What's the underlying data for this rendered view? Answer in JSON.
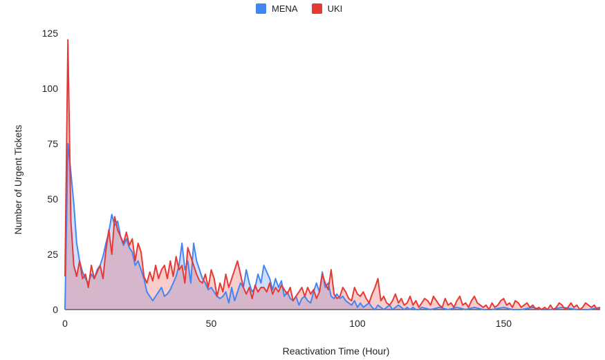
{
  "chart_data": {
    "type": "area",
    "xlabel": "Reactivation Time (Hour)",
    "ylabel": "Number of Urgent Tickets",
    "xlim": [
      0,
      183
    ],
    "ylim": [
      0,
      125
    ],
    "xticks": [
      0,
      50,
      100,
      150
    ],
    "yticks": [
      0,
      25,
      50,
      75,
      100,
      125
    ],
    "legend_position": "top-center",
    "grid": false,
    "series": [
      {
        "name": "MENA",
        "color": "#4285f4",
        "points": [
          [
            0,
            0
          ],
          [
            1,
            75
          ],
          [
            2,
            62
          ],
          [
            3,
            48
          ],
          [
            4,
            30
          ],
          [
            5,
            22
          ],
          [
            6,
            17
          ],
          [
            7,
            14
          ],
          [
            8,
            12
          ],
          [
            9,
            16
          ],
          [
            10,
            14
          ],
          [
            11,
            18
          ],
          [
            12,
            20
          ],
          [
            13,
            24
          ],
          [
            14,
            30
          ],
          [
            15,
            35
          ],
          [
            16,
            43
          ],
          [
            17,
            38
          ],
          [
            18,
            40
          ],
          [
            19,
            33
          ],
          [
            20,
            29
          ],
          [
            21,
            32
          ],
          [
            22,
            28
          ],
          [
            23,
            26
          ],
          [
            24,
            20
          ],
          [
            25,
            22
          ],
          [
            26,
            18
          ],
          [
            27,
            14
          ],
          [
            28,
            8
          ],
          [
            29,
            6
          ],
          [
            30,
            4
          ],
          [
            31,
            6
          ],
          [
            32,
            8
          ],
          [
            33,
            10
          ],
          [
            34,
            6
          ],
          [
            35,
            7
          ],
          [
            36,
            9
          ],
          [
            37,
            12
          ],
          [
            38,
            15
          ],
          [
            39,
            20
          ],
          [
            40,
            30
          ],
          [
            41,
            18
          ],
          [
            42,
            22
          ],
          [
            43,
            12
          ],
          [
            44,
            30
          ],
          [
            45,
            22
          ],
          [
            46,
            18
          ],
          [
            47,
            14
          ],
          [
            48,
            12
          ],
          [
            49,
            9
          ],
          [
            50,
            10
          ],
          [
            51,
            8
          ],
          [
            52,
            6
          ],
          [
            53,
            5
          ],
          [
            54,
            6
          ],
          [
            55,
            8
          ],
          [
            56,
            3
          ],
          [
            57,
            10
          ],
          [
            58,
            4
          ],
          [
            59,
            8
          ],
          [
            60,
            12
          ],
          [
            61,
            10
          ],
          [
            62,
            18
          ],
          [
            63,
            12
          ],
          [
            64,
            8
          ],
          [
            65,
            10
          ],
          [
            66,
            16
          ],
          [
            67,
            12
          ],
          [
            68,
            20
          ],
          [
            69,
            17
          ],
          [
            70,
            14
          ],
          [
            71,
            9
          ],
          [
            72,
            14
          ],
          [
            73,
            10
          ],
          [
            74,
            13
          ],
          [
            75,
            6
          ],
          [
            76,
            8
          ],
          [
            77,
            5
          ],
          [
            78,
            4
          ],
          [
            79,
            6
          ],
          [
            80,
            2
          ],
          [
            81,
            5
          ],
          [
            82,
            6
          ],
          [
            83,
            4
          ],
          [
            84,
            3
          ],
          [
            85,
            8
          ],
          [
            86,
            12
          ],
          [
            87,
            8
          ],
          [
            88,
            17
          ],
          [
            89,
            10
          ],
          [
            90,
            12
          ],
          [
            91,
            6
          ],
          [
            92,
            5
          ],
          [
            93,
            7
          ],
          [
            94,
            5
          ],
          [
            95,
            6
          ],
          [
            96,
            4
          ],
          [
            97,
            3
          ],
          [
            98,
            2
          ],
          [
            99,
            4
          ],
          [
            100,
            1
          ],
          [
            101,
            3
          ],
          [
            102,
            1
          ],
          [
            103,
            2
          ],
          [
            104,
            3
          ],
          [
            105,
            1
          ],
          [
            106,
            0
          ],
          [
            107,
            2
          ],
          [
            108,
            1
          ],
          [
            109,
            0
          ],
          [
            110,
            1
          ],
          [
            111,
            2
          ],
          [
            112,
            0
          ],
          [
            113,
            1
          ],
          [
            114,
            2
          ],
          [
            115,
            1
          ],
          [
            116,
            0
          ],
          [
            117,
            1
          ],
          [
            118,
            0
          ],
          [
            119,
            1
          ],
          [
            120,
            0
          ],
          [
            121,
            0
          ],
          [
            122,
            1
          ],
          [
            125,
            0
          ],
          [
            128,
            1
          ],
          [
            131,
            0
          ],
          [
            134,
            1
          ],
          [
            137,
            0
          ],
          [
            140,
            1
          ],
          [
            143,
            0
          ],
          [
            146,
            0
          ],
          [
            150,
            1
          ],
          [
            153,
            0
          ],
          [
            156,
            0
          ],
          [
            160,
            1
          ],
          [
            163,
            0
          ],
          [
            166,
            0
          ],
          [
            170,
            1
          ],
          [
            175,
            0
          ],
          [
            179,
            0
          ],
          [
            183,
            1
          ]
        ]
      },
      {
        "name": "UKI",
        "color": "#e53935",
        "points": [
          [
            0,
            15
          ],
          [
            1,
            122
          ],
          [
            2,
            40
          ],
          [
            3,
            20
          ],
          [
            4,
            15
          ],
          [
            5,
            22
          ],
          [
            6,
            14
          ],
          [
            7,
            16
          ],
          [
            8,
            10
          ],
          [
            9,
            20
          ],
          [
            10,
            14
          ],
          [
            11,
            17
          ],
          [
            12,
            20
          ],
          [
            13,
            14
          ],
          [
            14,
            27
          ],
          [
            15,
            36
          ],
          [
            16,
            25
          ],
          [
            17,
            42
          ],
          [
            18,
            36
          ],
          [
            19,
            33
          ],
          [
            20,
            30
          ],
          [
            21,
            35
          ],
          [
            22,
            29
          ],
          [
            23,
            32
          ],
          [
            24,
            22
          ],
          [
            25,
            30
          ],
          [
            26,
            26
          ],
          [
            27,
            15
          ],
          [
            28,
            12
          ],
          [
            29,
            17
          ],
          [
            30,
            13
          ],
          [
            31,
            20
          ],
          [
            32,
            14
          ],
          [
            33,
            18
          ],
          [
            34,
            20
          ],
          [
            35,
            14
          ],
          [
            36,
            22
          ],
          [
            37,
            15
          ],
          [
            38,
            24
          ],
          [
            39,
            18
          ],
          [
            40,
            20
          ],
          [
            41,
            12
          ],
          [
            42,
            28
          ],
          [
            43,
            24
          ],
          [
            44,
            20
          ],
          [
            45,
            16
          ],
          [
            46,
            13
          ],
          [
            47,
            12
          ],
          [
            48,
            16
          ],
          [
            49,
            10
          ],
          [
            50,
            18
          ],
          [
            51,
            14
          ],
          [
            52,
            6
          ],
          [
            53,
            12
          ],
          [
            54,
            8
          ],
          [
            55,
            16
          ],
          [
            56,
            10
          ],
          [
            57,
            14
          ],
          [
            58,
            18
          ],
          [
            59,
            22
          ],
          [
            60,
            16
          ],
          [
            61,
            10
          ],
          [
            62,
            7
          ],
          [
            63,
            10
          ],
          [
            64,
            5
          ],
          [
            65,
            11
          ],
          [
            66,
            8
          ],
          [
            67,
            10
          ],
          [
            68,
            10
          ],
          [
            69,
            8
          ],
          [
            70,
            12
          ],
          [
            71,
            7
          ],
          [
            72,
            10
          ],
          [
            73,
            8
          ],
          [
            74,
            11
          ],
          [
            75,
            9
          ],
          [
            76,
            7
          ],
          [
            77,
            10
          ],
          [
            78,
            4
          ],
          [
            79,
            6
          ],
          [
            80,
            8
          ],
          [
            81,
            10
          ],
          [
            82,
            6
          ],
          [
            83,
            10
          ],
          [
            84,
            7
          ],
          [
            85,
            9
          ],
          [
            86,
            5
          ],
          [
            87,
            8
          ],
          [
            88,
            16
          ],
          [
            89,
            12
          ],
          [
            90,
            9
          ],
          [
            91,
            18
          ],
          [
            92,
            7
          ],
          [
            93,
            5
          ],
          [
            94,
            6
          ],
          [
            95,
            10
          ],
          [
            96,
            8
          ],
          [
            97,
            5
          ],
          [
            98,
            4
          ],
          [
            99,
            10
          ],
          [
            100,
            7
          ],
          [
            101,
            6
          ],
          [
            102,
            8
          ],
          [
            103,
            5
          ],
          [
            104,
            3
          ],
          [
            105,
            7
          ],
          [
            106,
            10
          ],
          [
            107,
            14
          ],
          [
            108,
            4
          ],
          [
            109,
            6
          ],
          [
            110,
            3
          ],
          [
            111,
            2
          ],
          [
            112,
            4
          ],
          [
            113,
            7
          ],
          [
            114,
            3
          ],
          [
            115,
            5
          ],
          [
            116,
            2
          ],
          [
            117,
            3
          ],
          [
            118,
            6
          ],
          [
            119,
            2
          ],
          [
            120,
            4
          ],
          [
            121,
            1
          ],
          [
            122,
            3
          ],
          [
            123,
            5
          ],
          [
            124,
            4
          ],
          [
            125,
            2
          ],
          [
            126,
            6
          ],
          [
            127,
            4
          ],
          [
            128,
            2
          ],
          [
            129,
            1
          ],
          [
            130,
            5
          ],
          [
            131,
            2
          ],
          [
            132,
            3
          ],
          [
            133,
            1
          ],
          [
            134,
            4
          ],
          [
            135,
            6
          ],
          [
            136,
            2
          ],
          [
            137,
            3
          ],
          [
            138,
            1
          ],
          [
            139,
            4
          ],
          [
            140,
            6
          ],
          [
            141,
            3
          ],
          [
            142,
            2
          ],
          [
            143,
            1
          ],
          [
            144,
            2
          ],
          [
            145,
            0
          ],
          [
            146,
            3
          ],
          [
            147,
            1
          ],
          [
            148,
            2
          ],
          [
            149,
            4
          ],
          [
            150,
            5
          ],
          [
            151,
            2
          ],
          [
            152,
            3
          ],
          [
            153,
            1
          ],
          [
            154,
            4
          ],
          [
            155,
            3
          ],
          [
            156,
            1
          ],
          [
            157,
            2
          ],
          [
            158,
            3
          ],
          [
            159,
            1
          ],
          [
            160,
            2
          ],
          [
            161,
            0
          ],
          [
            162,
            1
          ],
          [
            163,
            0
          ],
          [
            164,
            1
          ],
          [
            165,
            0
          ],
          [
            166,
            2
          ],
          [
            167,
            0
          ],
          [
            168,
            1
          ],
          [
            169,
            3
          ],
          [
            170,
            2
          ],
          [
            171,
            0
          ],
          [
            172,
            1
          ],
          [
            173,
            3
          ],
          [
            174,
            1
          ],
          [
            175,
            2
          ],
          [
            176,
            0
          ],
          [
            177,
            1
          ],
          [
            178,
            3
          ],
          [
            179,
            2
          ],
          [
            180,
            1
          ],
          [
            181,
            2
          ],
          [
            182,
            0
          ],
          [
            183,
            1
          ]
        ]
      }
    ]
  }
}
